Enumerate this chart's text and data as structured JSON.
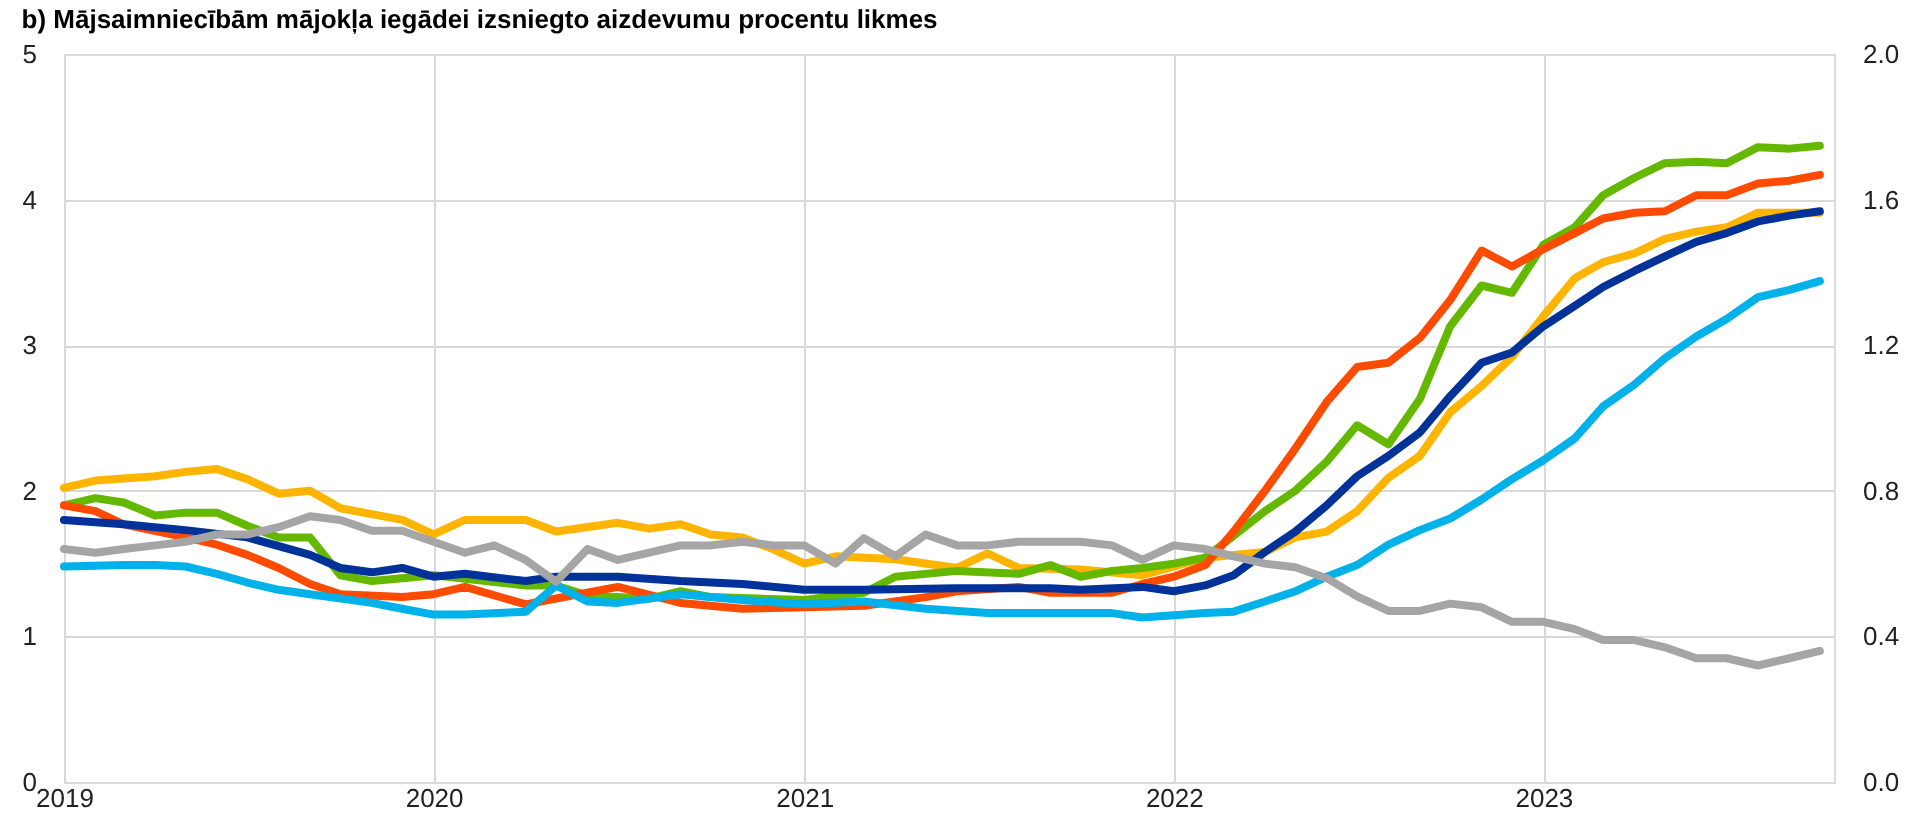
{
  "chart_data": {
    "type": "line",
    "title": "b) Mājsaimniecībām mājokļa iegādei izsniegto aizdevumu procentu likmes",
    "xlim": [
      "2019-01",
      "2023-10-15"
    ],
    "xticks": [
      {
        "value": "2019",
        "label": "2019"
      },
      {
        "value": "2020",
        "label": "2020"
      },
      {
        "value": "2021",
        "label": "2021"
      },
      {
        "value": "2022",
        "label": "2022"
      },
      {
        "value": "2023",
        "label": "2023"
      }
    ],
    "ylim": [
      0,
      5
    ],
    "yticks": [
      0,
      1,
      2,
      3,
      4,
      5
    ],
    "y2lim": [
      0,
      2
    ],
    "y2ticks": [
      {
        "value": 0,
        "label": "0.0"
      },
      {
        "value": 0.4,
        "label": "0.4"
      },
      {
        "value": 0.8,
        "label": "0.8"
      },
      {
        "value": 1.2,
        "label": "1.2"
      },
      {
        "value": 1.6,
        "label": "1.6"
      },
      {
        "value": 2,
        "label": "2.0"
      }
    ],
    "grid": true,
    "legend": false,
    "marker": "none",
    "line_style": "solid",
    "series": [
      {
        "color": "#ffb400",
        "x": [
          "2019-01",
          "2019-02",
          "2019-04",
          "2019-05",
          "2019-06",
          "2019-07",
          "2019-08",
          "2019-09",
          "2019-10",
          "2019-12",
          "2020-01",
          "2020-02",
          "2020-04",
          "2020-05",
          "2020-07",
          "2020-08",
          "2020-09",
          "2020-10",
          "2020-11",
          "2020-12",
          "2021-01",
          "2021-02",
          "2021-04",
          "2021-06",
          "2021-07",
          "2021-08",
          "2021-10",
          "2021-12",
          "2022-02",
          "2022-04",
          "2022-05",
          "2022-06",
          "2022-07",
          "2022-08",
          "2022-09",
          "2022-10",
          "2022-11",
          "2022-12",
          "2023-01",
          "2023-02",
          "2023-03",
          "2023-04",
          "2023-05",
          "2023-06",
          "2023-07",
          "2023-08",
          "2023-10"
        ],
        "values": [
          2.02,
          2.07,
          2.1,
          2.13,
          2.15,
          2.08,
          1.98,
          2.0,
          1.88,
          1.8,
          1.7,
          1.8,
          1.8,
          1.72,
          1.78,
          1.74,
          1.77,
          1.7,
          1.68,
          1.6,
          1.5,
          1.55,
          1.53,
          1.47,
          1.57,
          1.47,
          1.46,
          1.42,
          1.54,
          1.58,
          1.68,
          1.72,
          1.86,
          2.09,
          2.24,
          2.54,
          2.72,
          2.92,
          3.2,
          3.46,
          3.57,
          3.63,
          3.73,
          3.78,
          3.81,
          3.91,
          3.91
        ]
      },
      {
        "color": "#65b800",
        "x": [
          "2019-01",
          "2019-02",
          "2019-03",
          "2019-04",
          "2019-05",
          "2019-06",
          "2019-07",
          "2019-08",
          "2019-09",
          "2019-10",
          "2019-11",
          "2019-12",
          "2020-01",
          "2020-04",
          "2020-05",
          "2020-06",
          "2020-08",
          "2020-09",
          "2020-10",
          "2021-01",
          "2021-03",
          "2021-04",
          "2021-06",
          "2021-08",
          "2021-09",
          "2021-10",
          "2021-11",
          "2021-12",
          "2022-01",
          "2022-02",
          "2022-03",
          "2022-04",
          "2022-05",
          "2022-06",
          "2022-07",
          "2022-08",
          "2022-09",
          "2022-10",
          "2022-11",
          "2022-12",
          "2023-01",
          "2023-02",
          "2023-03",
          "2023-04",
          "2023-05",
          "2023-06",
          "2023-07",
          "2023-08",
          "2023-09",
          "2023-10"
        ],
        "values": [
          1.9,
          1.95,
          1.92,
          1.83,
          1.85,
          1.85,
          1.76,
          1.68,
          1.68,
          1.42,
          1.38,
          1.4,
          1.42,
          1.35,
          1.35,
          1.28,
          1.26,
          1.31,
          1.27,
          1.25,
          1.3,
          1.41,
          1.45,
          1.43,
          1.49,
          1.41,
          1.45,
          1.47,
          1.5,
          1.54,
          1.69,
          1.86,
          2.0,
          2.2,
          2.45,
          2.32,
          2.63,
          3.13,
          3.41,
          3.36,
          3.69,
          3.81,
          4.03,
          4.15,
          4.25,
          4.26,
          4.25,
          4.36,
          4.35,
          4.37
        ]
      },
      {
        "color": "#ff4b00",
        "x": [
          "2019-01",
          "2019-02",
          "2019-03",
          "2019-05",
          "2019-06",
          "2019-07",
          "2019-08",
          "2019-09",
          "2019-10",
          "2019-12",
          "2020-01",
          "2020-02",
          "2020-04",
          "2020-05",
          "2020-07",
          "2020-09",
          "2020-11",
          "2021-01",
          "2021-03",
          "2021-05",
          "2021-06",
          "2021-08",
          "2021-09",
          "2021-11",
          "2021-12",
          "2022-01",
          "2022-02",
          "2022-03",
          "2022-04",
          "2022-05",
          "2022-06",
          "2022-07",
          "2022-08",
          "2022-09",
          "2022-10",
          "2022-11",
          "2022-12",
          "2023-01",
          "2023-02",
          "2023-03",
          "2023-04",
          "2023-05",
          "2023-06",
          "2023-07",
          "2023-08",
          "2023-09",
          "2023-10"
        ],
        "values": [
          1.9,
          1.86,
          1.77,
          1.68,
          1.63,
          1.56,
          1.47,
          1.36,
          1.29,
          1.27,
          1.29,
          1.34,
          1.22,
          1.26,
          1.34,
          1.23,
          1.19,
          1.2,
          1.21,
          1.27,
          1.31,
          1.34,
          1.3,
          1.3,
          1.36,
          1.41,
          1.49,
          1.72,
          2.0,
          2.29,
          2.61,
          2.85,
          2.88,
          3.05,
          3.31,
          3.65,
          3.54,
          3.66,
          3.77,
          3.87,
          3.91,
          3.92,
          4.03,
          4.03,
          4.11,
          4.13,
          4.17
        ]
      },
      {
        "color": "#00b1ea",
        "x": [
          "2019-01",
          "2019-03",
          "2019-04",
          "2019-05",
          "2019-06",
          "2019-07",
          "2019-08",
          "2019-09",
          "2019-11",
          "2019-12",
          "2020-01",
          "2020-02",
          "2020-04",
          "2020-05",
          "2020-06",
          "2020-07",
          "2020-09",
          "2020-11",
          "2021-01",
          "2021-03",
          "2021-05",
          "2021-07",
          "2021-09",
          "2021-11",
          "2021-12",
          "2022-02",
          "2022-03",
          "2022-04",
          "2022-05",
          "2022-06",
          "2022-07",
          "2022-08",
          "2022-09",
          "2022-10",
          "2022-11",
          "2022-12",
          "2023-01",
          "2023-02",
          "2023-03",
          "2023-04",
          "2023-05",
          "2023-06",
          "2023-07",
          "2023-08",
          "2023-09",
          "2023-10"
        ],
        "values": [
          1.48,
          1.49,
          1.49,
          1.48,
          1.43,
          1.37,
          1.32,
          1.29,
          1.23,
          1.19,
          1.15,
          1.15,
          1.17,
          1.35,
          1.24,
          1.23,
          1.29,
          1.25,
          1.22,
          1.24,
          1.19,
          1.16,
          1.16,
          1.16,
          1.13,
          1.16,
          1.17,
          1.24,
          1.31,
          1.41,
          1.49,
          1.63,
          1.73,
          1.81,
          1.94,
          2.08,
          2.21,
          2.36,
          2.58,
          2.73,
          2.91,
          3.06,
          3.18,
          3.33,
          3.38,
          3.44
        ]
      },
      {
        "color": "#003299",
        "x": [
          "2019-01",
          "2019-03",
          "2019-05",
          "2019-07",
          "2019-09",
          "2019-10",
          "2019-11",
          "2019-12",
          "2020-01",
          "2020-02",
          "2020-04",
          "2020-05",
          "2020-07",
          "2020-09",
          "2020-11",
          "2021-01",
          "2021-03",
          "2021-06",
          "2021-09",
          "2021-10",
          "2021-12",
          "2022-01",
          "2022-02",
          "2022-03",
          "2022-04",
          "2022-05",
          "2022-06",
          "2022-07",
          "2022-08",
          "2022-09",
          "2022-10",
          "2022-11",
          "2022-12",
          "2023-01",
          "2023-02",
          "2023-03",
          "2023-04",
          "2023-05",
          "2023-06",
          "2023-07",
          "2023-08",
          "2023-09",
          "2023-10"
        ],
        "values": [
          1.8,
          1.77,
          1.73,
          1.68,
          1.56,
          1.47,
          1.44,
          1.47,
          1.41,
          1.43,
          1.38,
          1.41,
          1.41,
          1.38,
          1.36,
          1.32,
          1.32,
          1.33,
          1.33,
          1.32,
          1.34,
          1.31,
          1.35,
          1.42,
          1.58,
          1.72,
          1.9,
          2.1,
          2.24,
          2.4,
          2.65,
          2.88,
          2.95,
          3.13,
          3.27,
          3.4,
          3.51,
          3.61,
          3.71,
          3.77,
          3.85,
          3.89,
          3.92
        ]
      },
      {
        "color": "#a5a5a5",
        "axis": "y2",
        "x": [
          "2019-01",
          "2019-02",
          "2019-03",
          "2019-04",
          "2019-05",
          "2019-06",
          "2019-07",
          "2019-08",
          "2019-09",
          "2019-10",
          "2019-11",
          "2019-12",
          "2020-01",
          "2020-02",
          "2020-03",
          "2020-04",
          "2020-05",
          "2020-06",
          "2020-07",
          "2020-08",
          "2020-09",
          "2020-10",
          "2020-11",
          "2020-12",
          "2021-01",
          "2021-02",
          "2021-03",
          "2021-04",
          "2021-05",
          "2021-06",
          "2021-07",
          "2021-08",
          "2021-10",
          "2021-11",
          "2021-12",
          "2022-01",
          "2022-02",
          "2022-03",
          "2022-04",
          "2022-05",
          "2022-06",
          "2022-07",
          "2022-08",
          "2022-09",
          "2022-10",
          "2022-11",
          "2022-12",
          "2023-01",
          "2023-02",
          "2023-03",
          "2023-04",
          "2023-05",
          "2023-06",
          "2023-07",
          "2023-08",
          "2023-09",
          "2023-10"
        ],
        "values": [
          0.64,
          0.63,
          0.64,
          0.65,
          0.66,
          0.68,
          0.68,
          0.7,
          0.73,
          0.72,
          0.69,
          0.69,
          0.66,
          0.63,
          0.65,
          0.61,
          0.55,
          0.64,
          0.61,
          0.63,
          0.65,
          0.65,
          0.66,
          0.65,
          0.65,
          0.6,
          0.67,
          0.62,
          0.68,
          0.65,
          0.65,
          0.66,
          0.66,
          0.65,
          0.61,
          0.65,
          0.64,
          0.62,
          0.6,
          0.59,
          0.56,
          0.51,
          0.47,
          0.47,
          0.49,
          0.48,
          0.44,
          0.44,
          0.42,
          0.39,
          0.39,
          0.37,
          0.34,
          0.34,
          0.32,
          0.34,
          0.36
        ]
      }
    ]
  }
}
